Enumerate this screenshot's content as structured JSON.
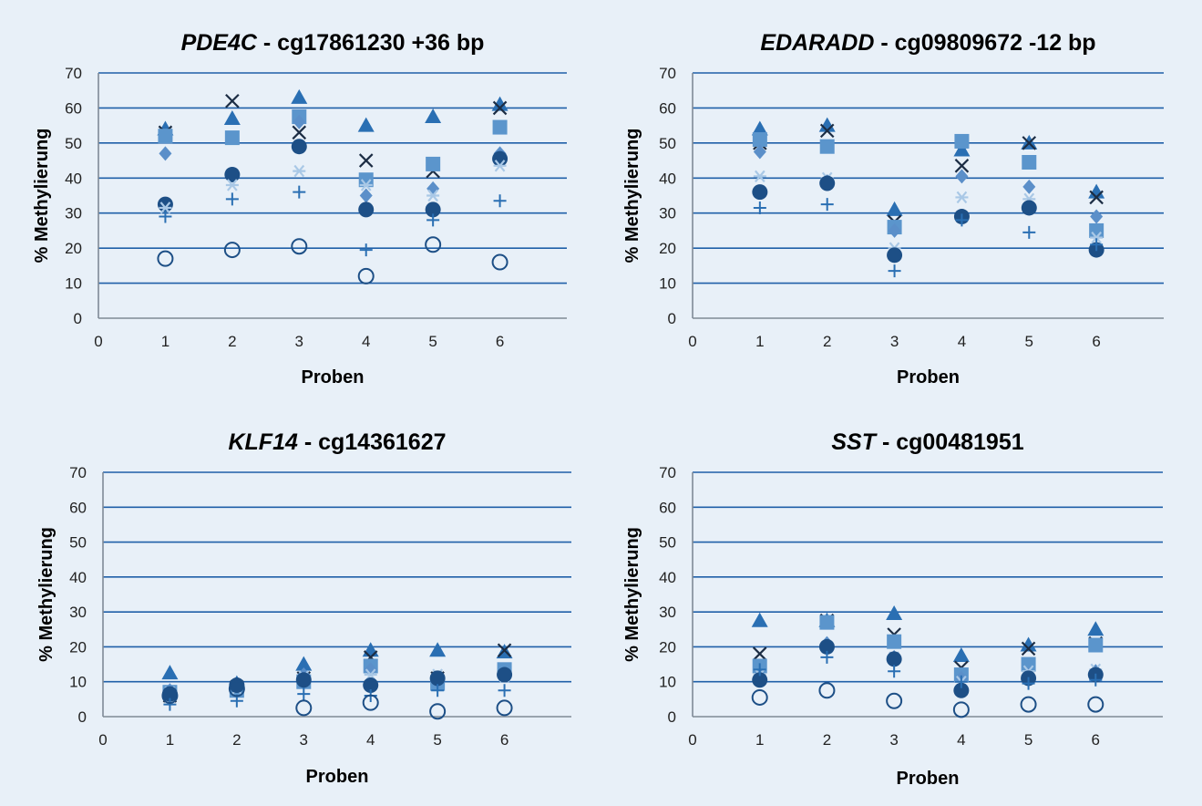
{
  "colors": {
    "grid": "#1f5fa8",
    "triangle": "#2a6fb3",
    "square": "#5b95cc",
    "diamond": "#5b8fc9",
    "cross": "#1c2d44",
    "star": "#a9c8e6",
    "filled_circle": "#1d4f86",
    "open_circle": "#1d4f86",
    "plus": "#2a6fb3"
  },
  "chart_data": [
    {
      "type": "scatter",
      "title_gene": "PDE4C",
      "title_rest": " - cg17861230 +36 bp",
      "xlabel": "Proben",
      "ylabel": "% Methylierung",
      "xlim": [
        0,
        7
      ],
      "ylim": [
        0,
        70
      ],
      "xticks": [
        "0",
        "1",
        "2",
        "3",
        "4",
        "5",
        "6"
      ],
      "yticks": [
        "0",
        "10",
        "20",
        "30",
        "40",
        "50",
        "60",
        "70"
      ],
      "series": [
        {
          "marker": "triangle",
          "x": [
            1,
            2,
            3,
            4,
            5,
            6
          ],
          "y": [
            54,
            57,
            63,
            55,
            57.5,
            61
          ]
        },
        {
          "marker": "cross",
          "x": [
            1,
            2,
            3,
            4,
            5,
            6
          ],
          "y": [
            53,
            62,
            53,
            45,
            42,
            60
          ]
        },
        {
          "marker": "square",
          "x": [
            1,
            2,
            3,
            4,
            5,
            6
          ],
          "y": [
            52,
            51.5,
            57.5,
            39.5,
            44,
            54.5
          ]
        },
        {
          "marker": "diamond",
          "x": [
            1,
            2,
            3,
            4,
            5,
            6
          ],
          "y": [
            47,
            41,
            56,
            35,
            37,
            47
          ]
        },
        {
          "marker": "filled_circle",
          "x": [
            1,
            2,
            3,
            4,
            5,
            6
          ],
          "y": [
            32.5,
            41,
            49,
            31,
            31,
            45.5
          ]
        },
        {
          "marker": "star",
          "x": [
            1,
            2,
            3,
            4,
            5,
            6
          ],
          "y": [
            31.5,
            38,
            42,
            38,
            35,
            43.5
          ]
        },
        {
          "marker": "plus",
          "x": [
            1,
            2,
            3,
            4,
            5,
            6
          ],
          "y": [
            29,
            34,
            36,
            19.5,
            28,
            33.5
          ]
        },
        {
          "marker": "open_circle",
          "x": [
            1,
            2,
            3,
            4,
            5,
            6
          ],
          "y": [
            17,
            19.5,
            20.5,
            12,
            21,
            16
          ]
        }
      ]
    },
    {
      "type": "scatter",
      "title_gene": "EDARADD",
      "title_rest": " - cg09809672 -12 bp",
      "xlabel": "Proben",
      "ylabel": "% Methylierung",
      "xlim": [
        0,
        7
      ],
      "ylim": [
        0,
        70
      ],
      "xticks": [
        "0",
        "1",
        "2",
        "3",
        "4",
        "5",
        "6"
      ],
      "yticks": [
        "0",
        "10",
        "20",
        "30",
        "40",
        "50",
        "60",
        "70"
      ],
      "series": [
        {
          "marker": "triangle",
          "x": [
            1,
            2,
            3,
            4,
            5,
            6
          ],
          "y": [
            54,
            55,
            31,
            48,
            50,
            36
          ]
        },
        {
          "marker": "cross",
          "x": [
            1,
            2,
            3,
            4,
            5,
            6
          ],
          "y": [
            50,
            53.5,
            27.5,
            43.5,
            50,
            34.5
          ]
        },
        {
          "marker": "square",
          "x": [
            1,
            2,
            3,
            4,
            5,
            6
          ],
          "y": [
            51,
            49,
            26,
            50.5,
            44.5,
            25
          ]
        },
        {
          "marker": "diamond",
          "x": [
            1,
            2,
            3,
            4,
            5,
            6
          ],
          "y": [
            47.5,
            39,
            25,
            40.5,
            37.5,
            29
          ]
        },
        {
          "marker": "star",
          "x": [
            1,
            2,
            3,
            4,
            5,
            6
          ],
          "y": [
            40.5,
            40,
            20,
            34.5,
            34,
            23
          ]
        },
        {
          "marker": "filled_circle",
          "x": [
            1,
            2,
            3,
            4,
            5,
            6
          ],
          "y": [
            36,
            38.5,
            18,
            29,
            31.5,
            19.5
          ]
        },
        {
          "marker": "plus",
          "x": [
            1,
            2,
            3,
            4,
            5,
            6
          ],
          "y": [
            31.5,
            32.5,
            13.5,
            28,
            24.5,
            21
          ]
        }
      ]
    },
    {
      "type": "scatter",
      "title_gene": "KLF14",
      "title_rest": " - cg14361627",
      "xlabel": "Proben",
      "ylabel": "% Methylierung",
      "xlim": [
        0,
        7
      ],
      "ylim": [
        0,
        70
      ],
      "xticks": [
        "0",
        "1",
        "2",
        "3",
        "4",
        "5",
        "6"
      ],
      "yticks": [
        "0",
        "10",
        "20",
        "30",
        "40",
        "50",
        "60",
        "70"
      ],
      "series": [
        {
          "marker": "triangle",
          "x": [
            1,
            2,
            3,
            4,
            5,
            6
          ],
          "y": [
            12.5,
            9.5,
            15,
            19,
            19,
            18.5
          ]
        },
        {
          "marker": "cross",
          "x": [
            1,
            2,
            3,
            4,
            5,
            6
          ],
          "y": [
            6,
            8.5,
            11,
            17,
            11,
            19
          ]
        },
        {
          "marker": "square",
          "x": [
            1,
            2,
            3,
            4,
            5,
            6
          ],
          "y": [
            7,
            7.5,
            10,
            14.5,
            9.5,
            13.5
          ]
        },
        {
          "marker": "diamond",
          "x": [
            1,
            2,
            3,
            4,
            5,
            6
          ],
          "y": [
            7.5,
            9,
            12,
            13.5,
            10,
            12
          ]
        },
        {
          "marker": "star",
          "x": [
            1,
            2,
            3,
            4,
            5,
            6
          ],
          "y": [
            7,
            8,
            11.5,
            12,
            12,
            11.5
          ]
        },
        {
          "marker": "filled_circle",
          "x": [
            1,
            2,
            3,
            4,
            5,
            6
          ],
          "y": [
            6.5,
            9,
            10.5,
            9,
            11,
            12
          ]
        },
        {
          "marker": "plus",
          "x": [
            1,
            2,
            3,
            4,
            5,
            6
          ],
          "y": [
            3.5,
            4.5,
            6.5,
            6,
            7.5,
            7.5
          ]
        },
        {
          "marker": "open_circle",
          "x": [
            1,
            2,
            3,
            4,
            5,
            6
          ],
          "y": [
            6,
            8,
            2.5,
            4,
            1.5,
            2.5
          ]
        }
      ]
    },
    {
      "type": "scatter",
      "title_gene": "SST",
      "title_rest": " - cg00481951",
      "xlabel": "Proben",
      "ylabel": "% Methylierung",
      "xlim": [
        0,
        7
      ],
      "ylim": [
        0,
        70
      ],
      "xticks": [
        "0",
        "1",
        "2",
        "3",
        "4",
        "5",
        "6"
      ],
      "yticks": [
        "0",
        "10",
        "20",
        "30",
        "40",
        "50",
        "60",
        "70"
      ],
      "series": [
        {
          "marker": "triangle",
          "x": [
            1,
            2,
            3,
            4,
            5,
            6
          ],
          "y": [
            27.5,
            27.5,
            29.5,
            17.5,
            20.5,
            25
          ]
        },
        {
          "marker": "cross",
          "x": [
            1,
            2,
            3,
            4,
            5,
            6
          ],
          "y": [
            18,
            27.5,
            23.5,
            14,
            19.5,
            21
          ]
        },
        {
          "marker": "square",
          "x": [
            1,
            2,
            3,
            4,
            5,
            6
          ],
          "y": [
            14.5,
            27,
            21.5,
            12,
            15,
            20.5
          ]
        },
        {
          "marker": "diamond",
          "x": [
            1,
            2,
            3,
            4,
            5,
            6
          ],
          "y": [
            11,
            21,
            17,
            11,
            12,
            13
          ]
        },
        {
          "marker": "star",
          "x": [
            1,
            2,
            3,
            4,
            5,
            6
          ],
          "y": [
            12,
            20,
            17,
            10,
            13,
            13.5
          ]
        },
        {
          "marker": "filled_circle",
          "x": [
            1,
            2,
            3,
            4,
            5,
            6
          ],
          "y": [
            10.5,
            20,
            16.5,
            7.5,
            11,
            12
          ]
        },
        {
          "marker": "plus",
          "x": [
            1,
            2,
            3,
            4,
            5,
            6
          ],
          "y": [
            13.5,
            17,
            13,
            10,
            9.5,
            10.5
          ]
        },
        {
          "marker": "open_circle",
          "x": [
            1,
            2,
            3,
            4,
            5,
            6
          ],
          "y": [
            5.5,
            7.5,
            4.5,
            2,
            3.5,
            3.5
          ]
        }
      ]
    }
  ]
}
